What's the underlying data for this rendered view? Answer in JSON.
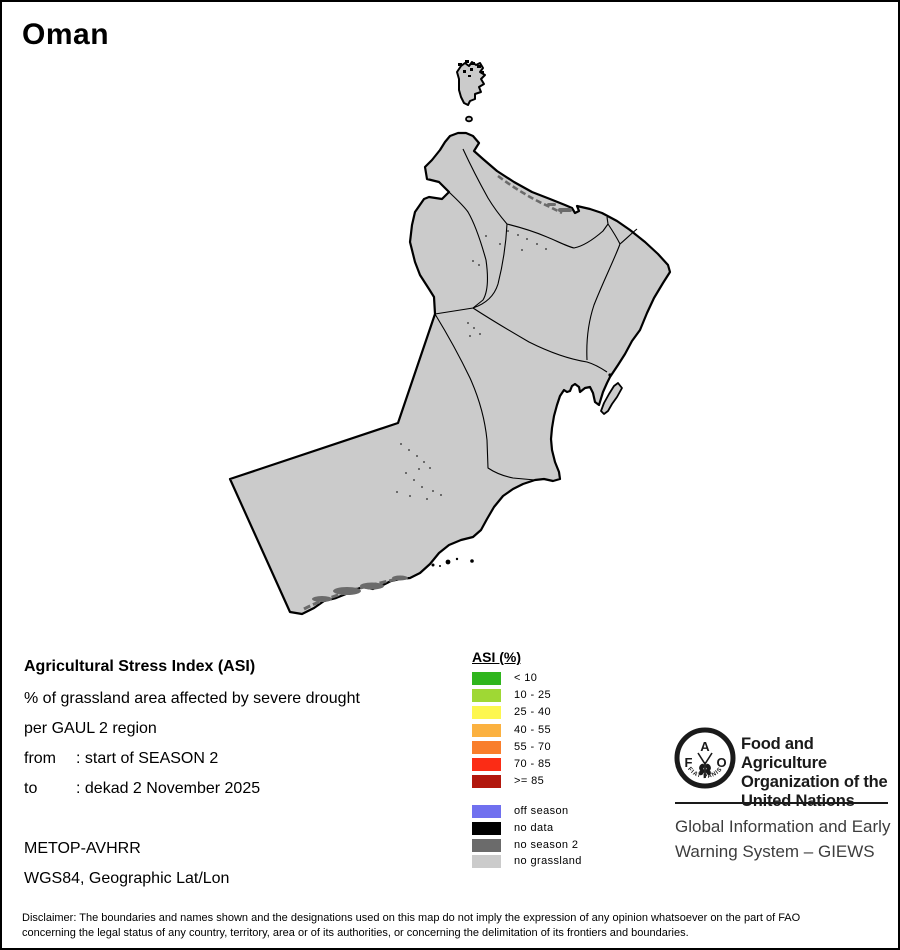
{
  "title": "Oman",
  "info": {
    "heading": "Agricultural Stress Index (ASI)",
    "subtitle1": "% of grassland area affected by severe drought",
    "subtitle2": "per GAUL 2 region",
    "from_label": "from",
    "from_value": ": start of SEASON 2",
    "to_label": "to",
    "to_value": ": dekad 2 November 2025",
    "sensor": "METOP-AVHRR",
    "projection": "WGS84, Geographic Lat/Lon"
  },
  "legend": {
    "title": "ASI (%)",
    "classes": [
      {
        "label": "< 10",
        "color": "#2FB51D"
      },
      {
        "label": "10 - 25",
        "color": "#9FD834"
      },
      {
        "label": "25 - 40",
        "color": "#FDF74F"
      },
      {
        "label": "40 - 55",
        "color": "#FBB140"
      },
      {
        "label": "55 - 70",
        "color": "#F97E2C"
      },
      {
        "label": "70 - 85",
        "color": "#FB2C15"
      },
      {
        "label": ">= 85",
        "color": "#B2170D"
      }
    ],
    "extra_classes": [
      {
        "label": "off season",
        "color": "#7070EF"
      },
      {
        "label": "no data",
        "color": "#000000"
      },
      {
        "label": "no season 2",
        "color": "#6B6B6B"
      },
      {
        "label": "no grassland",
        "color": "#CBCBCB"
      }
    ]
  },
  "map": {
    "land_fill": "#CBCBCB",
    "border_color": "#000000",
    "speckle_color": "#6B6B6B"
  },
  "branding": {
    "logo_letters": {
      "f": "F",
      "a": "A",
      "o": "O"
    },
    "logo_motto": "FIAT PANIS",
    "org_name_lines": [
      "Food and Agriculture",
      "Organization of the",
      "United Nations"
    ],
    "giews_lines": [
      "Global Information and Early",
      "Warning System – GIEWS"
    ]
  },
  "disclaimer": {
    "line1": "Disclaimer: The boundaries and names shown and the designations used on this map do not imply the expression of any opinion whatsoever on the part of FAO",
    "line2": "concerning the legal status of any country, territory, area or of its authorities, or concerning the delimitation of its frontiers and boundaries."
  }
}
